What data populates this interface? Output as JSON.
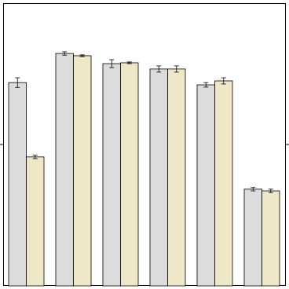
{
  "chart_data": {
    "type": "bar",
    "categories": [
      null,
      null,
      null,
      null,
      null,
      null
    ],
    "series": [
      {
        "color": "#dcdcdc",
        "values": [
          0.719,
          0.822,
          0.786,
          0.767,
          0.711,
          0.342
        ],
        "errors": [
          0.017,
          0.006,
          0.014,
          0.011,
          0.008,
          0.006
        ]
      },
      {
        "color": "#efe8c8",
        "values": [
          0.456,
          0.814,
          0.789,
          0.767,
          0.725,
          0.336
        ],
        "errors": [
          0.006,
          0.003,
          0.003,
          0.011,
          0.011,
          0.006
        ]
      }
    ],
    "ylim": [
      0,
      1
    ],
    "yticks": [
      0.5
    ],
    "grid": false
  }
}
